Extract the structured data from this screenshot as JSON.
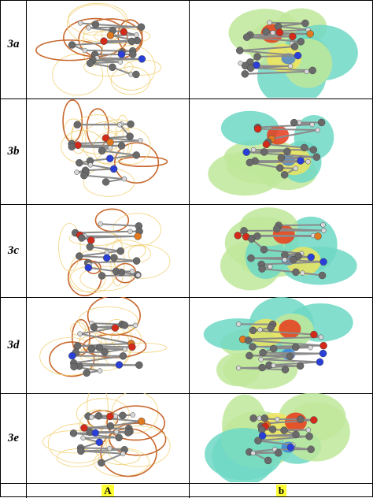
{
  "rows": [
    {
      "label": "3a"
    },
    {
      "label": "3b"
    },
    {
      "label": "3c"
    },
    {
      "label": "3d"
    },
    {
      "label": "3e"
    }
  ],
  "columns": [
    {
      "label": "A",
      "highlight": "#ffff33"
    },
    {
      "label": "b",
      "highlight": "#ffff33"
    }
  ],
  "colors": {
    "contour_light": "#f2d27a",
    "contour_dark": "#c8682e",
    "surface_teal": "#6fd8c4",
    "surface_green": "#bfe79a",
    "surface_yellow": "#f4e35a",
    "negative_red": "#e83a1a",
    "positive_blue": "#2c6fe0",
    "atom_carbon": "#6a6a6a",
    "atom_hydrogen": "#d8d8d8",
    "atom_oxygen": "#d42a1a",
    "atom_nitrogen": "#2a3fd8",
    "atom_phosphorus": "#e07a20"
  }
}
